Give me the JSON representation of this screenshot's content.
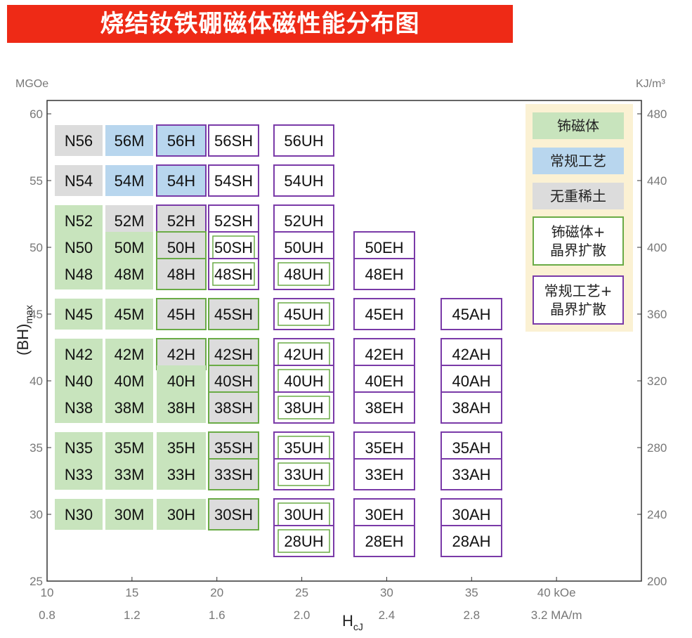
{
  "title": "烧结钕铁硼磁体磁性能分布图",
  "colors": {
    "title_bg": "#ee2a16",
    "green": "#c8e4bd",
    "blue": "#b8d6ee",
    "gray": "#dcdcdc",
    "green_border": "#6aab46",
    "purple_border": "#7a3aa8",
    "legend_bg": "#fbf1d3",
    "axis": "#333333"
  },
  "chart_data": {
    "type": "table",
    "y_left": {
      "label_main": "(BH)",
      "label_sub": "max",
      "unit": "MGOe",
      "ticks": [
        25,
        30,
        35,
        40,
        45,
        50,
        55,
        60
      ],
      "range": [
        25,
        61
      ]
    },
    "y_right": {
      "unit": "KJ/m³",
      "ticks": [
        {
          "value": 200,
          "label": "200"
        },
        {
          "value": 240,
          "label": "240"
        },
        {
          "value": 280,
          "label": "280"
        },
        {
          "value": 320,
          "label": "320"
        },
        {
          "value": 360,
          "label": "360"
        },
        {
          "value": 400,
          "label": "400"
        },
        {
          "value": 440,
          "label": "440"
        },
        {
          "value": 480,
          "label": "480"
        }
      ]
    },
    "x": {
      "label_main": "H",
      "label_sub": "cJ",
      "range": [
        10,
        45
      ],
      "ticks_koe": [
        {
          "value": 10,
          "label": "10"
        },
        {
          "value": 15,
          "label": "15"
        },
        {
          "value": 20,
          "label": "20"
        },
        {
          "value": 25,
          "label": "25"
        },
        {
          "value": 30,
          "label": "30"
        },
        {
          "value": 35,
          "label": "35"
        },
        {
          "value": 40,
          "label": "40 kOe"
        }
      ],
      "ticks_ma": [
        {
          "value": 10,
          "label": "0.8"
        },
        {
          "value": 15,
          "label": "1.2"
        },
        {
          "value": 20,
          "label": "1.6"
        },
        {
          "value": 25,
          "label": "2.0"
        },
        {
          "value": 30,
          "label": "2.4"
        },
        {
          "value": 35,
          "label": "2.8"
        },
        {
          "value": 40,
          "label": "3.2 MA/m"
        }
      ]
    },
    "grades": [
      {
        "grade": "N56",
        "col": "N",
        "bh": 58,
        "fill": "gray",
        "border": null
      },
      {
        "grade": "N54",
        "col": "N",
        "bh": 55,
        "fill": "gray",
        "border": null
      },
      {
        "grade": "N52",
        "col": "N",
        "bh": 52,
        "fill": "green",
        "border": null
      },
      {
        "grade": "N50",
        "col": "N",
        "bh": 50,
        "fill": "green",
        "border": null
      },
      {
        "grade": "N48",
        "col": "N",
        "bh": 48,
        "fill": "green",
        "border": null
      },
      {
        "grade": "N45",
        "col": "N",
        "bh": 45,
        "fill": "green",
        "border": null
      },
      {
        "grade": "N42",
        "col": "N",
        "bh": 42,
        "fill": "green",
        "border": null
      },
      {
        "grade": "N40",
        "col": "N",
        "bh": 40,
        "fill": "green",
        "border": null
      },
      {
        "grade": "N38",
        "col": "N",
        "bh": 38,
        "fill": "green",
        "border": null
      },
      {
        "grade": "N35",
        "col": "N",
        "bh": 35,
        "fill": "green",
        "border": null
      },
      {
        "grade": "N33",
        "col": "N",
        "bh": 33,
        "fill": "green",
        "border": null
      },
      {
        "grade": "N30",
        "col": "N",
        "bh": 30,
        "fill": "green",
        "border": null
      },
      {
        "grade": "56M",
        "col": "M",
        "bh": 58,
        "fill": "blue",
        "border": null
      },
      {
        "grade": "54M",
        "col": "M",
        "bh": 55,
        "fill": "blue",
        "border": null
      },
      {
        "grade": "52M",
        "col": "M",
        "bh": 52,
        "fill": "gray",
        "border": null
      },
      {
        "grade": "50M",
        "col": "M",
        "bh": 50,
        "fill": "green",
        "border": null
      },
      {
        "grade": "48M",
        "col": "M",
        "bh": 48,
        "fill": "green",
        "border": null
      },
      {
        "grade": "45M",
        "col": "M",
        "bh": 45,
        "fill": "green",
        "border": null
      },
      {
        "grade": "42M",
        "col": "M",
        "bh": 42,
        "fill": "green",
        "border": null
      },
      {
        "grade": "40M",
        "col": "M",
        "bh": 40,
        "fill": "green",
        "border": null
      },
      {
        "grade": "38M",
        "col": "M",
        "bh": 38,
        "fill": "green",
        "border": null
      },
      {
        "grade": "35M",
        "col": "M",
        "bh": 35,
        "fill": "green",
        "border": null
      },
      {
        "grade": "33M",
        "col": "M",
        "bh": 33,
        "fill": "green",
        "border": null
      },
      {
        "grade": "30M",
        "col": "M",
        "bh": 30,
        "fill": "green",
        "border": null
      },
      {
        "grade": "56H",
        "col": "H",
        "bh": 58,
        "fill": "blue",
        "border": "purple"
      },
      {
        "grade": "54H",
        "col": "H",
        "bh": 55,
        "fill": "blue",
        "border": "purple"
      },
      {
        "grade": "52H",
        "col": "H",
        "bh": 52,
        "fill": "gray",
        "border": "purple"
      },
      {
        "grade": "50H",
        "col": "H",
        "bh": 50,
        "fill": "gray",
        "border": "green"
      },
      {
        "grade": "48H",
        "col": "H",
        "bh": 48,
        "fill": "gray",
        "border": "green"
      },
      {
        "grade": "45H",
        "col": "H",
        "bh": 45,
        "fill": "gray",
        "border": "green"
      },
      {
        "grade": "42H",
        "col": "H",
        "bh": 42,
        "fill": "gray",
        "border": "green"
      },
      {
        "grade": "40H",
        "col": "H",
        "bh": 40,
        "fill": "green",
        "border": null
      },
      {
        "grade": "38H",
        "col": "H",
        "bh": 38,
        "fill": "green",
        "border": null
      },
      {
        "grade": "35H",
        "col": "H",
        "bh": 35,
        "fill": "green",
        "border": null
      },
      {
        "grade": "33H",
        "col": "H",
        "bh": 33,
        "fill": "green",
        "border": null
      },
      {
        "grade": "30H",
        "col": "H",
        "bh": 30,
        "fill": "green",
        "border": null
      },
      {
        "grade": "56SH",
        "col": "SH",
        "bh": 58,
        "fill": "white",
        "border": "purple"
      },
      {
        "grade": "54SH",
        "col": "SH",
        "bh": 55,
        "fill": "white",
        "border": "purple"
      },
      {
        "grade": "52SH",
        "col": "SH",
        "bh": 52,
        "fill": "white",
        "border": "purple"
      },
      {
        "grade": "50SH",
        "col": "SH",
        "bh": 50,
        "fill": "white",
        "border": "purple_green"
      },
      {
        "grade": "48SH",
        "col": "SH",
        "bh": 48,
        "fill": "white",
        "border": "purple_green"
      },
      {
        "grade": "45SH",
        "col": "SH",
        "bh": 45,
        "fill": "gray",
        "border": "green"
      },
      {
        "grade": "42SH",
        "col": "SH",
        "bh": 42,
        "fill": "gray",
        "border": "green"
      },
      {
        "grade": "40SH",
        "col": "SH",
        "bh": 40,
        "fill": "gray",
        "border": "green"
      },
      {
        "grade": "38SH",
        "col": "SH",
        "bh": 38,
        "fill": "gray",
        "border": "green"
      },
      {
        "grade": "35SH",
        "col": "SH",
        "bh": 35,
        "fill": "gray",
        "border": "green"
      },
      {
        "grade": "33SH",
        "col": "SH",
        "bh": 33,
        "fill": "gray",
        "border": "green"
      },
      {
        "grade": "30SH",
        "col": "SH",
        "bh": 30,
        "fill": "gray",
        "border": "green"
      },
      {
        "grade": "56UH",
        "col": "UH",
        "bh": 58,
        "fill": "white",
        "border": "purple"
      },
      {
        "grade": "54UH",
        "col": "UH",
        "bh": 55,
        "fill": "white",
        "border": "purple"
      },
      {
        "grade": "52UH",
        "col": "UH",
        "bh": 52,
        "fill": "white",
        "border": "purple"
      },
      {
        "grade": "50UH",
        "col": "UH",
        "bh": 50,
        "fill": "white",
        "border": "purple"
      },
      {
        "grade": "48UH",
        "col": "UH",
        "bh": 48,
        "fill": "white",
        "border": "purple_green"
      },
      {
        "grade": "45UH",
        "col": "UH",
        "bh": 45,
        "fill": "white",
        "border": "purple_green"
      },
      {
        "grade": "42UH",
        "col": "UH",
        "bh": 42,
        "fill": "white",
        "border": "purple_green"
      },
      {
        "grade": "40UH",
        "col": "UH",
        "bh": 40,
        "fill": "white",
        "border": "purple_green"
      },
      {
        "grade": "38UH",
        "col": "UH",
        "bh": 38,
        "fill": "white",
        "border": "purple_green"
      },
      {
        "grade": "35UH",
        "col": "UH",
        "bh": 35,
        "fill": "white",
        "border": "purple_green"
      },
      {
        "grade": "33UH",
        "col": "UH",
        "bh": 33,
        "fill": "white",
        "border": "purple_green"
      },
      {
        "grade": "30UH",
        "col": "UH",
        "bh": 30,
        "fill": "white",
        "border": "purple_green"
      },
      {
        "grade": "28UH",
        "col": "UH",
        "bh": 28,
        "fill": "white",
        "border": "purple_green"
      },
      {
        "grade": "50EH",
        "col": "EH",
        "bh": 50,
        "fill": "white",
        "border": "purple"
      },
      {
        "grade": "48EH",
        "col": "EH",
        "bh": 48,
        "fill": "white",
        "border": "purple"
      },
      {
        "grade": "45EH",
        "col": "EH",
        "bh": 45,
        "fill": "white",
        "border": "purple"
      },
      {
        "grade": "42EH",
        "col": "EH",
        "bh": 42,
        "fill": "white",
        "border": "purple"
      },
      {
        "grade": "40EH",
        "col": "EH",
        "bh": 40,
        "fill": "white",
        "border": "purple"
      },
      {
        "grade": "38EH",
        "col": "EH",
        "bh": 38,
        "fill": "white",
        "border": "purple"
      },
      {
        "grade": "35EH",
        "col": "EH",
        "bh": 35,
        "fill": "white",
        "border": "purple"
      },
      {
        "grade": "33EH",
        "col": "EH",
        "bh": 33,
        "fill": "white",
        "border": "purple"
      },
      {
        "grade": "30EH",
        "col": "EH",
        "bh": 30,
        "fill": "white",
        "border": "purple"
      },
      {
        "grade": "28EH",
        "col": "EH",
        "bh": 28,
        "fill": "white",
        "border": "purple"
      },
      {
        "grade": "45AH",
        "col": "AH",
        "bh": 45,
        "fill": "white",
        "border": "purple"
      },
      {
        "grade": "42AH",
        "col": "AH",
        "bh": 42,
        "fill": "white",
        "border": "purple"
      },
      {
        "grade": "40AH",
        "col": "AH",
        "bh": 40,
        "fill": "white",
        "border": "purple"
      },
      {
        "grade": "38AH",
        "col": "AH",
        "bh": 38,
        "fill": "white",
        "border": "purple"
      },
      {
        "grade": "35AH",
        "col": "AH",
        "bh": 35,
        "fill": "white",
        "border": "purple"
      },
      {
        "grade": "33AH",
        "col": "AH",
        "bh": 33,
        "fill": "white",
        "border": "purple"
      },
      {
        "grade": "30AH",
        "col": "AH",
        "bh": 30,
        "fill": "white",
        "border": "purple"
      },
      {
        "grade": "28AH",
        "col": "AH",
        "bh": 28,
        "fill": "white",
        "border": "purple"
      }
    ]
  },
  "legend": {
    "items": [
      {
        "label": "钸磁体",
        "fill": "green",
        "border": null
      },
      {
        "label": "常规工艺",
        "fill": "blue",
        "border": null
      },
      {
        "label": "无重稀土",
        "fill": "gray",
        "border": null
      },
      {
        "label": "钸磁体+晶界扩散",
        "line1": "钸磁体+",
        "line2": "晶界扩散",
        "fill": "white",
        "border": "green"
      },
      {
        "label": "常规工艺+晶界扩散",
        "line1": "常规工艺+",
        "line2": "晶界扩散",
        "fill": "white",
        "border": "purple"
      }
    ]
  }
}
